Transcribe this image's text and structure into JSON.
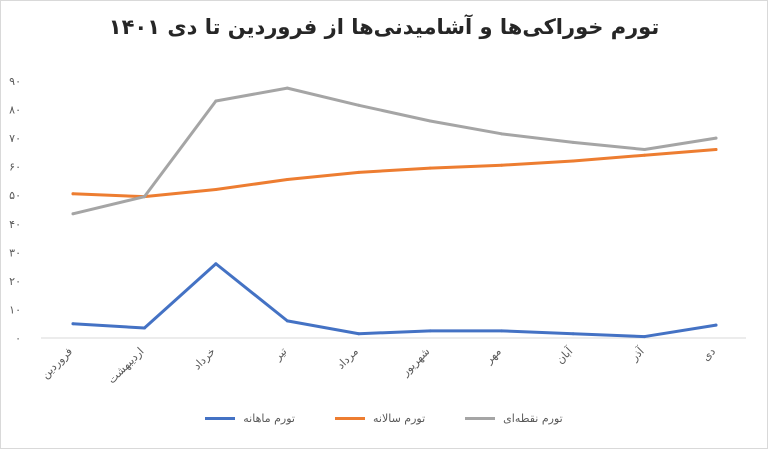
{
  "chart_data": {
    "type": "line",
    "title": "تورم خوراکی‌ها و آشامیدنی‌ها از فروردین تا دی ۱۴۰۱",
    "categories": [
      "فروردین",
      "اردیبهشت",
      "خرداد",
      "تیر",
      "مرداد",
      "شهریور",
      "مهر",
      "آبان",
      "آذر",
      "دی"
    ],
    "ytick_labels": [
      "۰",
      "۱۰",
      "۲۰",
      "۳۰",
      "۴۰",
      "۵۰",
      "۶۰",
      "۷۰",
      "۸۰",
      "۹۰"
    ],
    "ylim": [
      0,
      90
    ],
    "series": [
      {
        "name": "تورم ماهانه",
        "color": "#4472C4",
        "values": [
          5,
          3.5,
          26,
          6,
          1.5,
          2.5,
          2.5,
          1.5,
          0.5,
          4.5
        ]
      },
      {
        "name": "تورم سالانه",
        "color": "#ED7D31",
        "values": [
          50.5,
          49.5,
          52,
          55.5,
          58,
          59.5,
          60.5,
          62,
          64,
          66
        ]
      },
      {
        "name": "تورم نقطه‌ای",
        "color": "#A5A5A5",
        "values": [
          43.5,
          49.5,
          83,
          87.5,
          81.5,
          76,
          71.5,
          68.5,
          66,
          70
        ]
      }
    ],
    "legend_order": [
      0,
      1,
      2
    ],
    "legend_position": "bottom",
    "grid": false
  }
}
